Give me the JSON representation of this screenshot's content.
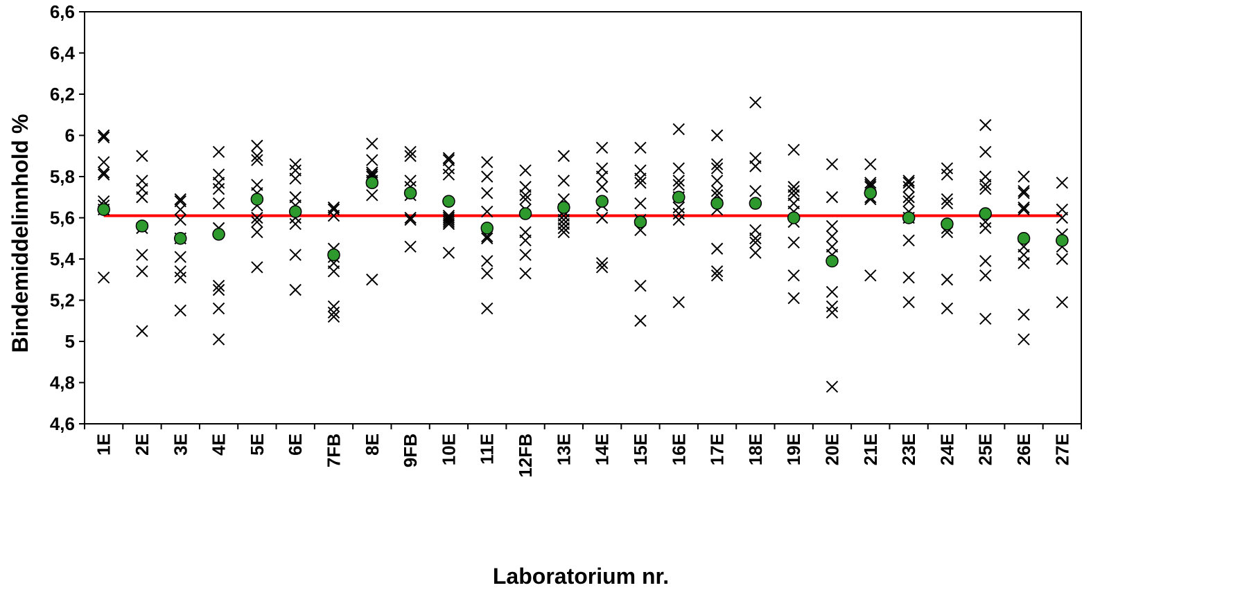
{
  "chart_data": {
    "type": "scatter",
    "title": "",
    "xlabel": "Laboratorium nr.",
    "ylabel": "Bindemiddelinnhold %",
    "ylim": [
      4.6,
      6.6
    ],
    "yticks": [
      "4,6",
      "4,8",
      "5",
      "5,2",
      "5,4",
      "5,6",
      "5,8",
      "6",
      "6,2",
      "6,4",
      "6,6"
    ],
    "grid": false,
    "legend": "none",
    "categories": [
      "1E",
      "2E",
      "3E",
      "4E",
      "5E",
      "6E",
      "7FB",
      "8E",
      "9FB",
      "10E",
      "11E",
      "12FB",
      "13E",
      "14E",
      "15E",
      "16E",
      "17E",
      "18E",
      "19E",
      "20E",
      "21E",
      "23E",
      "24E",
      "25E",
      "26E",
      "27E"
    ],
    "reference_line": {
      "value": 5.61,
      "color": "#ff0000"
    },
    "series": [
      {
        "marker": "x",
        "color": "#000000",
        "values": [
          [
            5.31,
            5.64,
            5.66,
            5.68,
            5.81,
            5.82,
            5.87,
            5.99,
            6.0
          ],
          [
            5.05,
            5.34,
            5.42,
            5.55,
            5.7,
            5.74,
            5.78,
            5.9
          ],
          [
            5.15,
            5.31,
            5.34,
            5.41,
            5.5,
            5.59,
            5.64,
            5.68,
            5.69
          ],
          [
            5.01,
            5.16,
            5.25,
            5.27,
            5.55,
            5.67,
            5.74,
            5.77,
            5.81,
            5.92
          ],
          [
            5.36,
            5.53,
            5.58,
            5.6,
            5.66,
            5.72,
            5.76,
            5.88,
            5.9,
            5.95
          ],
          [
            5.25,
            5.42,
            5.57,
            5.6,
            5.66,
            5.7,
            5.79,
            5.83,
            5.86
          ],
          [
            5.12,
            5.14,
            5.17,
            5.34,
            5.38,
            5.41,
            5.45,
            5.61,
            5.64,
            5.65
          ],
          [
            5.3,
            5.71,
            5.78,
            5.8,
            5.81,
            5.82,
            5.88,
            5.96
          ],
          [
            5.46,
            5.59,
            5.6,
            5.71,
            5.75,
            5.78,
            5.9,
            5.92
          ],
          [
            5.43,
            5.57,
            5.58,
            5.59,
            5.6,
            5.61,
            5.81,
            5.84,
            5.88,
            5.89
          ],
          [
            5.16,
            5.33,
            5.39,
            5.5,
            5.51,
            5.63,
            5.72,
            5.8,
            5.87
          ],
          [
            5.33,
            5.42,
            5.49,
            5.53,
            5.64,
            5.69,
            5.71,
            5.75,
            5.83
          ],
          [
            5.53,
            5.55,
            5.57,
            5.59,
            5.61,
            5.63,
            5.69,
            5.78,
            5.9
          ],
          [
            5.36,
            5.38,
            5.6,
            5.66,
            5.75,
            5.8,
            5.84,
            5.94
          ],
          [
            5.1,
            5.27,
            5.54,
            5.59,
            5.67,
            5.77,
            5.79,
            5.83,
            5.94
          ],
          [
            5.19,
            5.59,
            5.62,
            5.65,
            5.7,
            5.76,
            5.78,
            5.84,
            6.03
          ],
          [
            5.32,
            5.34,
            5.45,
            5.64,
            5.71,
            5.73,
            5.78,
            5.84,
            5.86,
            6.0
          ],
          [
            5.43,
            5.48,
            5.5,
            5.54,
            5.73,
            5.85,
            5.89,
            6.16
          ],
          [
            5.21,
            5.32,
            5.48,
            5.58,
            5.63,
            5.67,
            5.71,
            5.73,
            5.75,
            5.93
          ],
          [
            4.78,
            5.14,
            5.17,
            5.24,
            5.42,
            5.46,
            5.51,
            5.56,
            5.7,
            5.86
          ],
          [
            5.32,
            5.69,
            5.7,
            5.75,
            5.76,
            5.77,
            5.86
          ],
          [
            5.19,
            5.31,
            5.49,
            5.6,
            5.63,
            5.68,
            5.7,
            5.75,
            5.77,
            5.78
          ],
          [
            5.16,
            5.3,
            5.53,
            5.55,
            5.67,
            5.69,
            5.81,
            5.84
          ],
          [
            5.11,
            5.32,
            5.39,
            5.55,
            5.58,
            5.74,
            5.76,
            5.8,
            5.92,
            6.05
          ],
          [
            5.01,
            5.13,
            5.38,
            5.42,
            5.46,
            5.64,
            5.65,
            5.72,
            5.73,
            5.8
          ],
          [
            5.19,
            5.4,
            5.46,
            5.52,
            5.6,
            5.64,
            5.77
          ]
        ]
      },
      {
        "marker": "circle",
        "color": "#2e9a2e",
        "values": [
          5.64,
          5.56,
          5.5,
          5.52,
          5.69,
          5.63,
          5.42,
          5.77,
          5.72,
          5.68,
          5.55,
          5.62,
          5.65,
          5.68,
          5.58,
          5.7,
          5.67,
          5.67,
          5.6,
          5.39,
          5.72,
          5.6,
          5.57,
          5.62,
          5.5,
          5.49
        ]
      }
    ]
  }
}
